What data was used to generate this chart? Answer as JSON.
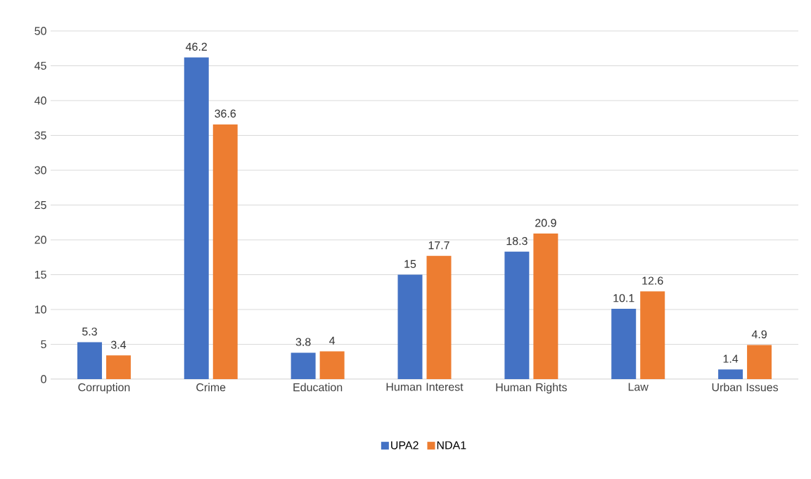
{
  "chart_data": {
    "type": "bar",
    "categories": [
      "Corruption",
      "Crime",
      "Education",
      "Human Interest",
      "Human Rights",
      "Law",
      "Urban Issues"
    ],
    "series": [
      {
        "name": "UPA2",
        "color": "#4472c4",
        "values": [
          5.3,
          46.2,
          3.8,
          15,
          18.3,
          10.1,
          1.4
        ]
      },
      {
        "name": "NDA1",
        "color": "#ed7d31",
        "values": [
          3.4,
          36.6,
          4,
          17.7,
          20.9,
          12.6,
          4.9
        ]
      }
    ],
    "ylim": [
      0,
      50
    ],
    "yticks": [
      0,
      5,
      10,
      15,
      20,
      25,
      30,
      35,
      40,
      45,
      50
    ],
    "grid": "y",
    "legend": "bottom",
    "data_labels": true
  }
}
